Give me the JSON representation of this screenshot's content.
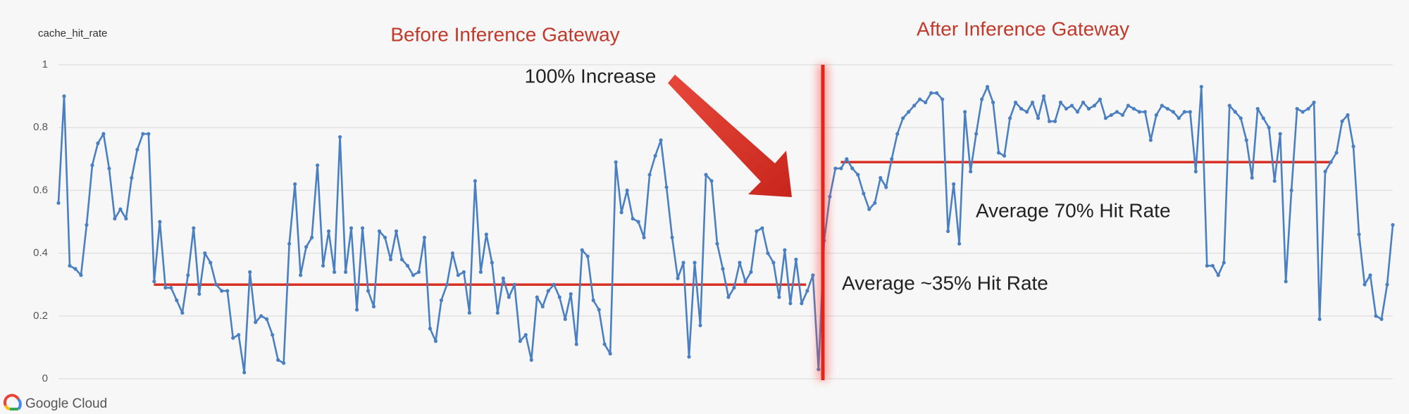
{
  "chart_data": {
    "type": "line",
    "y_label": "cache_hit_rate",
    "section_labels": [
      "Before Inference Gateway",
      "After Inference Gateway"
    ],
    "annotations": [
      "100% Increase",
      "Average 70% Hit Rate",
      "Average ~35% Hit Rate"
    ],
    "ylim": [
      0,
      1
    ],
    "yticks": [
      0,
      0.2,
      0.4,
      0.6,
      0.8,
      1
    ],
    "grid": true,
    "series": [
      {
        "color": "#4a7fc1",
        "values": [
          0.56,
          0.9,
          0.36,
          0.35,
          0.33,
          0.49,
          0.68,
          0.75,
          0.78,
          0.67,
          0.51,
          0.54,
          0.51,
          0.64,
          0.73,
          0.78,
          0.78,
          0.31,
          0.5,
          0.29,
          0.29,
          0.25,
          0.21,
          0.33,
          0.48,
          0.27,
          0.4,
          0.37,
          0.3,
          0.28,
          0.28,
          0.13,
          0.14,
          0.02,
          0.34,
          0.18,
          0.2,
          0.19,
          0.14,
          0.06,
          0.05,
          0.43,
          0.62,
          0.33,
          0.42,
          0.45,
          0.68,
          0.36,
          0.47,
          0.34,
          0.77,
          0.34,
          0.48,
          0.22,
          0.48,
          0.28,
          0.23,
          0.47,
          0.45,
          0.38,
          0.47,
          0.38,
          0.36,
          0.33,
          0.34,
          0.45,
          0.16,
          0.12,
          0.25,
          0.3,
          0.4,
          0.33,
          0.34,
          0.21,
          0.63,
          0.34,
          0.46,
          0.37,
          0.21,
          0.32,
          0.26,
          0.3,
          0.12,
          0.14,
          0.06,
          0.26,
          0.23,
          0.28,
          0.3,
          0.26,
          0.19,
          0.27,
          0.11,
          0.41,
          0.39,
          0.25,
          0.22,
          0.11,
          0.08,
          0.69,
          0.53,
          0.6,
          0.51,
          0.5,
          0.45,
          0.65,
          0.71,
          0.76,
          0.61,
          0.45,
          0.32,
          0.37,
          0.07,
          0.37,
          0.17,
          0.65,
          0.63,
          0.43,
          0.35,
          0.26,
          0.29,
          0.37,
          0.31,
          0.34,
          0.47,
          0.48,
          0.4,
          0.37,
          0.26,
          0.41,
          0.24,
          0.38,
          0.24,
          0.28,
          0.33,
          0.03,
          0.44,
          0.58,
          0.67,
          0.67,
          0.7,
          0.67,
          0.65,
          0.59,
          0.54,
          0.56,
          0.64,
          0.61,
          0.7,
          0.78,
          0.83,
          0.85,
          0.87,
          0.89,
          0.88,
          0.91,
          0.91,
          0.89,
          0.47,
          0.62,
          0.43,
          0.85,
          0.66,
          0.78,
          0.89,
          0.93,
          0.88,
          0.72,
          0.71,
          0.83,
          0.88,
          0.86,
          0.85,
          0.88,
          0.83,
          0.9,
          0.82,
          0.82,
          0.88,
          0.86,
          0.87,
          0.85,
          0.88,
          0.86,
          0.87,
          0.89,
          0.83,
          0.84,
          0.85,
          0.84,
          0.87,
          0.86,
          0.85,
          0.85,
          0.76,
          0.84,
          0.87,
          0.86,
          0.85,
          0.83,
          0.85,
          0.85,
          0.66,
          0.93,
          0.36,
          0.36,
          0.33,
          0.37,
          0.87,
          0.85,
          0.83,
          0.76,
          0.64,
          0.86,
          0.83,
          0.8,
          0.63,
          0.78,
          0.31,
          0.6,
          0.86,
          0.85,
          0.86,
          0.88,
          0.19,
          0.66,
          0.69,
          0.72,
          0.82,
          0.84,
          0.74,
          0.46,
          0.3,
          0.33,
          0.2,
          0.19,
          0.3,
          0.49
        ]
      }
    ],
    "reference_lines": [
      {
        "value": 0.3,
        "color": "#d93025"
      },
      {
        "value": 0.69,
        "color": "#d93025"
      }
    ]
  },
  "footer": {
    "logo": "Google Cloud"
  }
}
